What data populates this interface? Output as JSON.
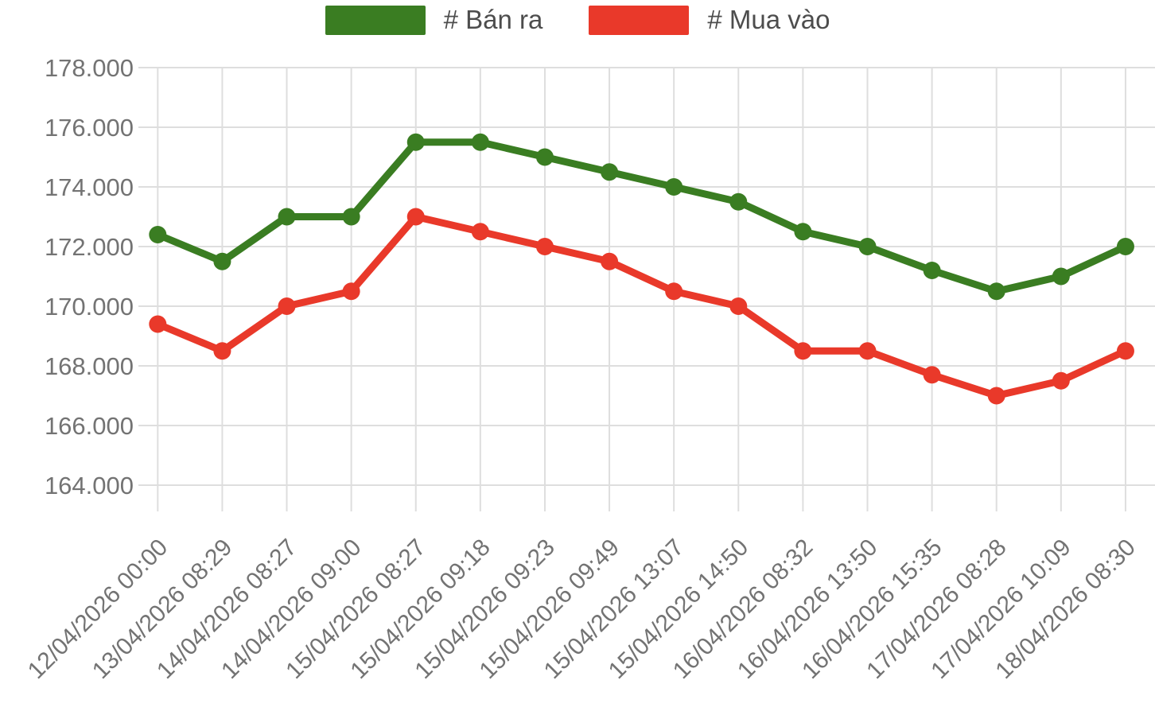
{
  "chart_data": {
    "type": "line",
    "title": "",
    "xlabel": "",
    "ylabel": "",
    "grid": true,
    "legend_position": "top",
    "x_labels": [
      "12/04/2026 00:00",
      "13/04/2026 08:29",
      "14/04/2026 08:27",
      "14/04/2026 09:00",
      "15/04/2026 08:27",
      "15/04/2026 09:18",
      "15/04/2026 09:23",
      "15/04/2026 09:49",
      "15/04/2026 13:07",
      "15/04/2026 14:50",
      "16/04/2026 08:32",
      "16/04/2026 13:50",
      "16/04/2026 15:35",
      "17/04/2026 08:28",
      "17/04/2026 10:09",
      "18/04/2026 08:30"
    ],
    "series": [
      {
        "name": "# Bán ra",
        "color": "#3a7d22",
        "values": [
          172400,
          171500,
          173000,
          173000,
          175500,
          175500,
          175000,
          174500,
          174000,
          173500,
          172500,
          172000,
          171200,
          170500,
          171000,
          172000
        ]
      },
      {
        "name": "# Mua vào",
        "color": "#e9392a",
        "values": [
          169400,
          168500,
          170000,
          170500,
          173000,
          172500,
          172000,
          171500,
          170500,
          170000,
          168500,
          168500,
          167700,
          167000,
          167500,
          168500
        ]
      }
    ],
    "y_axis": {
      "min": 164000,
      "max": 178000,
      "tick_step": 2000,
      "tick_labels": [
        "178.000",
        "176.000",
        "174.000",
        "172.000",
        "170.000",
        "168.000",
        "166.000",
        "164.000"
      ]
    },
    "colors": {
      "gridline": "#dedede",
      "tick_text": "#737373",
      "legend_text": "#4d4d4d",
      "background": "#ffffff"
    }
  }
}
